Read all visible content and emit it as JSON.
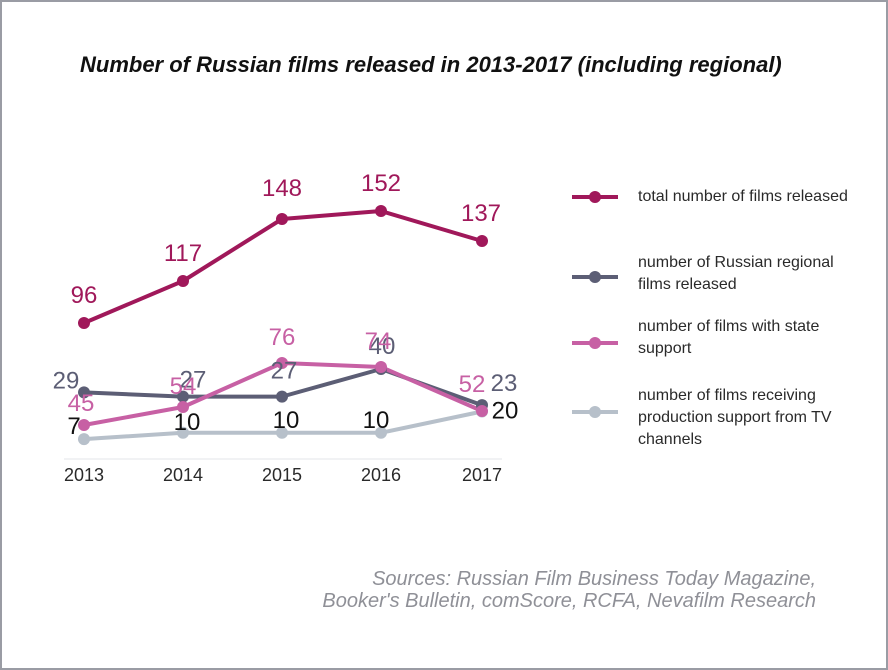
{
  "chart_data": {
    "type": "line",
    "title": "Number of Russian films released in 2013-2017 (including regional)",
    "xlabel": "",
    "ylabel": "",
    "categories": [
      "2013",
      "2014",
      "2015",
      "2016",
      "2017"
    ],
    "series": [
      {
        "name": "total number of films released",
        "color": "#a0185a",
        "values": [
          96,
          117,
          148,
          152,
          137
        ]
      },
      {
        "name": "number of Russian regional films released",
        "color": "#5c5e75",
        "values": [
          29,
          27,
          27,
          40,
          23
        ]
      },
      {
        "name": "number of films with state support",
        "color": "#c760a4",
        "values": [
          45,
          54,
          76,
          74,
          52
        ]
      },
      {
        "name": "number of films receiving production support from TV channels",
        "color": "#b7c0ca",
        "values": [
          7,
          10,
          10,
          10,
          20
        ]
      }
    ],
    "data_label_colors": [
      "#a0185a",
      "#5c5e75",
      "#c760a4",
      "#111111"
    ],
    "legend_position": "right",
    "grid": false
  },
  "sources": {
    "line1": "Sources: Russian Film Business Today Magazine,",
    "line2": "Booker's Bulletin, comScore, RCFA, Nevafilm Research"
  }
}
